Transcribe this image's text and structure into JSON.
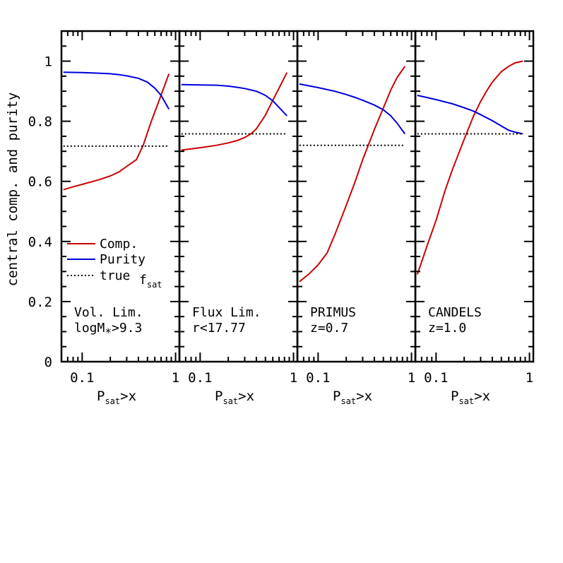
{
  "chart_data": [
    {
      "type": "line",
      "x_scale": "log",
      "xlim": [
        0.06,
        1.1
      ],
      "ylim": [
        0,
        1.1
      ],
      "y_ticks": [
        0,
        0.2,
        0.4,
        0.6,
        0.8,
        1
      ],
      "x_ticks": [
        0.1,
        1
      ],
      "ylabel": "central comp. and purity",
      "xlabel": {
        "main": "P",
        "sub": "sat",
        "rest": ">x"
      },
      "annotation": [
        "Vol. Lim.",
        "logM*>9.3"
      ],
      "legend": {
        "placement": "lower-left",
        "entries": [
          "Comp.",
          "Purity",
          "true"
        ],
        "true_math": {
          "main": "f",
          "sub": "sat"
        }
      },
      "series": [
        {
          "name": "Comp.",
          "color": "#cc0000",
          "x": [
            0.063,
            0.08,
            0.1,
            0.15,
            0.2,
            0.25,
            0.3,
            0.38,
            0.45,
            0.55,
            0.65,
            0.85
          ],
          "y": [
            0.572,
            0.582,
            0.59,
            0.605,
            0.618,
            0.632,
            0.65,
            0.672,
            0.72,
            0.8,
            0.86,
            0.958
          ]
        },
        {
          "name": "Purity",
          "color": "#0000dd",
          "x": [
            0.063,
            0.1,
            0.15,
            0.2,
            0.25,
            0.3,
            0.4,
            0.5,
            0.6,
            0.7,
            0.85
          ],
          "y": [
            0.963,
            0.962,
            0.96,
            0.958,
            0.955,
            0.951,
            0.943,
            0.93,
            0.91,
            0.886,
            0.84
          ]
        },
        {
          "name": "true",
          "style": "dotted",
          "color": "#000000",
          "x": [
            0.063,
            0.85
          ],
          "y": [
            0.717,
            0.717
          ]
        }
      ]
    },
    {
      "type": "line",
      "x_scale": "log",
      "xlim": [
        0.06,
        1.1
      ],
      "ylim": [
        0,
        1.1
      ],
      "x_ticks": [
        0.1,
        1
      ],
      "xlabel": {
        "main": "P",
        "sub": "sat",
        "rest": ">x"
      },
      "annotation": [
        "Flux Lim.",
        "r<17.77"
      ],
      "series": [
        {
          "name": "Comp.",
          "color": "#cc0000",
          "x": [
            0.063,
            0.1,
            0.15,
            0.2,
            0.25,
            0.3,
            0.35,
            0.4,
            0.5,
            0.6,
            0.7,
            0.85
          ],
          "y": [
            0.704,
            0.712,
            0.72,
            0.728,
            0.736,
            0.746,
            0.758,
            0.775,
            0.82,
            0.87,
            0.91,
            0.962
          ]
        },
        {
          "name": "Purity",
          "color": "#0000dd",
          "x": [
            0.063,
            0.1,
            0.15,
            0.2,
            0.25,
            0.3,
            0.4,
            0.5,
            0.6,
            0.7,
            0.85
          ],
          "y": [
            0.922,
            0.921,
            0.92,
            0.917,
            0.913,
            0.909,
            0.9,
            0.886,
            0.868,
            0.846,
            0.818
          ]
        },
        {
          "name": "true",
          "style": "dotted",
          "color": "#000000",
          "x": [
            0.063,
            0.85
          ],
          "y": [
            0.758,
            0.758
          ]
        }
      ]
    },
    {
      "type": "line",
      "x_scale": "log",
      "xlim": [
        0.06,
        1.1
      ],
      "ylim": [
        0,
        1.1
      ],
      "x_ticks": [
        0.1,
        1
      ],
      "xlabel": {
        "main": "P",
        "sub": "sat",
        "rest": ">x"
      },
      "annotation": [
        "PRIMUS",
        "z=0.7"
      ],
      "series": [
        {
          "name": "Comp.",
          "color": "#cc0000",
          "x": [
            0.063,
            0.08,
            0.1,
            0.125,
            0.15,
            0.2,
            0.25,
            0.3,
            0.4,
            0.5,
            0.6,
            0.7,
            0.85
          ],
          "y": [
            0.266,
            0.292,
            0.322,
            0.362,
            0.42,
            0.52,
            0.6,
            0.672,
            0.772,
            0.844,
            0.904,
            0.945,
            0.983
          ]
        },
        {
          "name": "Purity",
          "color": "#0000dd",
          "x": [
            0.063,
            0.1,
            0.15,
            0.2,
            0.25,
            0.3,
            0.4,
            0.5,
            0.6,
            0.7,
            0.85
          ],
          "y": [
            0.924,
            0.912,
            0.9,
            0.889,
            0.879,
            0.87,
            0.854,
            0.838,
            0.818,
            0.794,
            0.758
          ]
        },
        {
          "name": "true",
          "style": "dotted",
          "color": "#000000",
          "x": [
            0.063,
            0.85
          ],
          "y": [
            0.72,
            0.72
          ]
        }
      ]
    },
    {
      "type": "line",
      "x_scale": "log",
      "xlim": [
        0.06,
        1.1
      ],
      "ylim": [
        0,
        1.1
      ],
      "x_ticks": [
        0.1,
        1
      ],
      "xlabel": {
        "main": "P",
        "sub": "sat",
        "rest": ">x"
      },
      "annotation": [
        "CANDELS",
        "z=1.0"
      ],
      "series": [
        {
          "name": "Comp.",
          "color": "#cc0000",
          "x": [
            0.063,
            0.08,
            0.1,
            0.125,
            0.15,
            0.2,
            0.25,
            0.3,
            0.35,
            0.4,
            0.5,
            0.6,
            0.7,
            0.85
          ],
          "y": [
            0.29,
            0.385,
            0.47,
            0.57,
            0.64,
            0.74,
            0.815,
            0.866,
            0.902,
            0.93,
            0.965,
            0.983,
            0.994,
            1.0
          ]
        },
        {
          "name": "Purity",
          "color": "#0000dd",
          "x": [
            0.063,
            0.1,
            0.15,
            0.2,
            0.25,
            0.3,
            0.4,
            0.5,
            0.6,
            0.7,
            0.85
          ],
          "y": [
            0.886,
            0.872,
            0.858,
            0.845,
            0.834,
            0.822,
            0.802,
            0.784,
            0.77,
            0.764,
            0.758
          ]
        },
        {
          "name": "true",
          "style": "dotted",
          "color": "#000000",
          "x": [
            0.063,
            0.85
          ],
          "y": [
            0.758,
            0.758
          ]
        }
      ]
    }
  ]
}
